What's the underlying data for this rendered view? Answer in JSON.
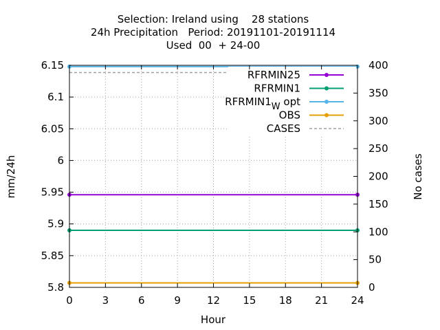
{
  "chart_data": {
    "type": "line",
    "title_lines": [
      "Selection: Ireland using    28 stations",
      "24h Precipitation   Period: 20191101-20191114",
      "Used  00  + 24-00"
    ],
    "xlabel": "Hour",
    "ylabel": "mm/24h",
    "y2label": "No cases",
    "xlim": [
      0,
      24
    ],
    "ylim": [
      5.8,
      6.15
    ],
    "y2lim": [
      0,
      400
    ],
    "xticks": [
      0,
      3,
      6,
      9,
      12,
      15,
      18,
      21,
      24
    ],
    "yticks": [
      "5.8",
      "5.85",
      "5.9",
      "5.95",
      "6",
      "6.05",
      "6.1",
      "6.15"
    ],
    "y2ticks": [
      0,
      50,
      100,
      150,
      200,
      250,
      300,
      350,
      400
    ],
    "grid": true,
    "legend_position": "top-right",
    "series": [
      {
        "name": "RFRMIN25",
        "axis": "y",
        "x": [
          0,
          24
        ],
        "y": [
          5.946,
          5.946
        ],
        "color": "#9400d3",
        "dash": false
      },
      {
        "name": "RFRMIN1",
        "axis": "y",
        "x": [
          0,
          24
        ],
        "y": [
          5.89,
          5.89
        ],
        "color": "#009e73",
        "dash": false
      },
      {
        "name": "RFRMIN1",
        "name_sub": "W",
        "name_suffix": " opt",
        "axis": "y",
        "x": [
          0,
          24
        ],
        "y": [
          6.148,
          6.148
        ],
        "color": "#56b4e9",
        "dash": false
      },
      {
        "name": "OBS",
        "axis": "y",
        "x": [
          0,
          24
        ],
        "y": [
          5.807,
          5.807
        ],
        "color": "#e69f00",
        "dash": false
      },
      {
        "name": "CASES",
        "axis": "y2",
        "x": [
          0,
          24
        ],
        "y": [
          387,
          387
        ],
        "color": "#a0a0a0",
        "dash": true
      }
    ]
  }
}
